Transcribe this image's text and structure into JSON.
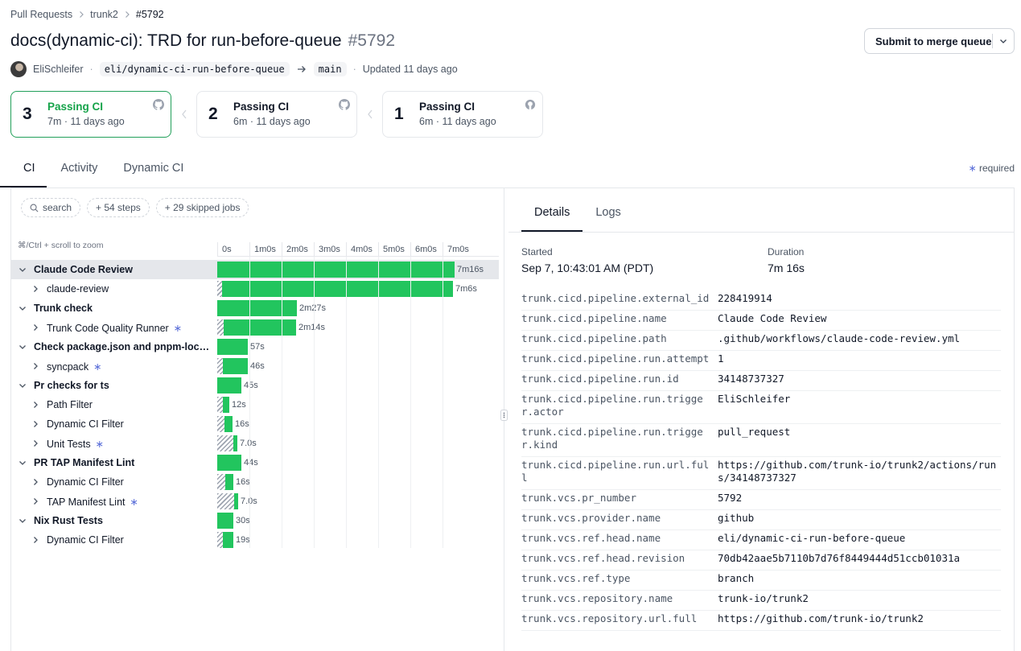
{
  "breadcrumb": {
    "item1": "Pull Requests",
    "item2": "trunk2",
    "item3": "#5792"
  },
  "pr": {
    "title": "docs(dynamic-ci): TRD for run-before-queue",
    "number": "#5792",
    "author": "EliSchleifer",
    "head_branch": "eli/dynamic-ci-run-before-queue",
    "base_branch": "main",
    "updated": "Updated 11 days ago"
  },
  "merge_button": {
    "label": "Submit to merge queue"
  },
  "runs": [
    {
      "number": "3",
      "status": "Passing CI",
      "duration": "7m",
      "ago": "11 days ago"
    },
    {
      "number": "2",
      "status": "Passing CI",
      "duration": "6m",
      "ago": "11 days ago"
    },
    {
      "number": "1",
      "status": "Passing CI",
      "duration": "6m",
      "ago": "11 days ago"
    }
  ],
  "tabs": {
    "ci": "CI",
    "activity": "Activity",
    "dynamic_ci": "Dynamic CI"
  },
  "required_label": "required",
  "filters": {
    "search": "search",
    "steps": "+ 54 steps",
    "skipped": "+ 29 skipped jobs"
  },
  "zoom_hint": "⌘/Ctrl + scroll to zoom",
  "axis_ticks": [
    "0s",
    "1m0s",
    "2m0s",
    "3m0s",
    "4m0s",
    "5m0s",
    "6m0s",
    "7m0s"
  ],
  "jobs": [
    {
      "name": "Claude Code Review",
      "duration": "7m16s"
    },
    {
      "name": "claude-review",
      "duration": "7m6s"
    },
    {
      "name": "Trunk check",
      "duration": "2m27s"
    },
    {
      "name": "Trunk Code Quality Runner",
      "duration": "2m14s"
    },
    {
      "name": "Check package.json and pnpm-loc…",
      "duration": "57s"
    },
    {
      "name": "syncpack",
      "duration": "46s"
    },
    {
      "name": "Pr checks for ts",
      "duration": "45s"
    },
    {
      "name": "Path Filter",
      "duration": "12s"
    },
    {
      "name": "Dynamic CI Filter",
      "duration": "16s"
    },
    {
      "name": "Unit Tests",
      "duration": "7.0s"
    },
    {
      "name": "PR TAP Manifest Lint",
      "duration": "44s"
    },
    {
      "name": "Dynamic CI Filter",
      "duration": "16s"
    },
    {
      "name": "TAP Manifest Lint",
      "duration": "7.0s"
    },
    {
      "name": "Nix Rust Tests",
      "duration": "30s"
    },
    {
      "name": "Dynamic CI Filter",
      "duration": "19s"
    }
  ],
  "details_tabs": {
    "details": "Details",
    "logs": "Logs"
  },
  "details": {
    "started_label": "Started",
    "started_value": "Sep 7, 10:43:01 AM (PDT)",
    "duration_label": "Duration",
    "duration_value": "7m 16s"
  },
  "attributes": [
    {
      "key": "trunk.cicd.pipeline.external_id",
      "value": "228419914"
    },
    {
      "key": "trunk.cicd.pipeline.name",
      "value": "Claude Code Review"
    },
    {
      "key": "trunk.cicd.pipeline.path",
      "value": ".github/workflows/claude-code-review.yml"
    },
    {
      "key": "trunk.cicd.pipeline.run.attempt",
      "value": "1"
    },
    {
      "key": "trunk.cicd.pipeline.run.id",
      "value": "34148737327"
    },
    {
      "key": "trunk.cicd.pipeline.run.trigger.actor",
      "value": "EliSchleifer"
    },
    {
      "key": "trunk.cicd.pipeline.run.trigger.kind",
      "value": "pull_request"
    },
    {
      "key": "trunk.cicd.pipeline.run.url.full",
      "value": "https://github.com/trunk-io/trunk2/actions/runs/34148737327"
    },
    {
      "key": "trunk.vcs.pr_number",
      "value": "5792"
    },
    {
      "key": "trunk.vcs.provider.name",
      "value": "github"
    },
    {
      "key": "trunk.vcs.ref.head.name",
      "value": "eli/dynamic-ci-run-before-queue"
    },
    {
      "key": "trunk.vcs.ref.head.revision",
      "value": "70db42aae5b7110b7d76f8449444d51ccb01031a"
    },
    {
      "key": "trunk.vcs.ref.type",
      "value": "branch"
    },
    {
      "key": "trunk.vcs.repository.name",
      "value": "trunk-io/trunk2"
    },
    {
      "key": "trunk.vcs.repository.url.full",
      "value": "https://github.com/trunk-io/trunk2"
    }
  ],
  "colors": {
    "accent_green": "#22c55e",
    "required_star": "#5b6fd9",
    "active_border": "#22a05a"
  }
}
